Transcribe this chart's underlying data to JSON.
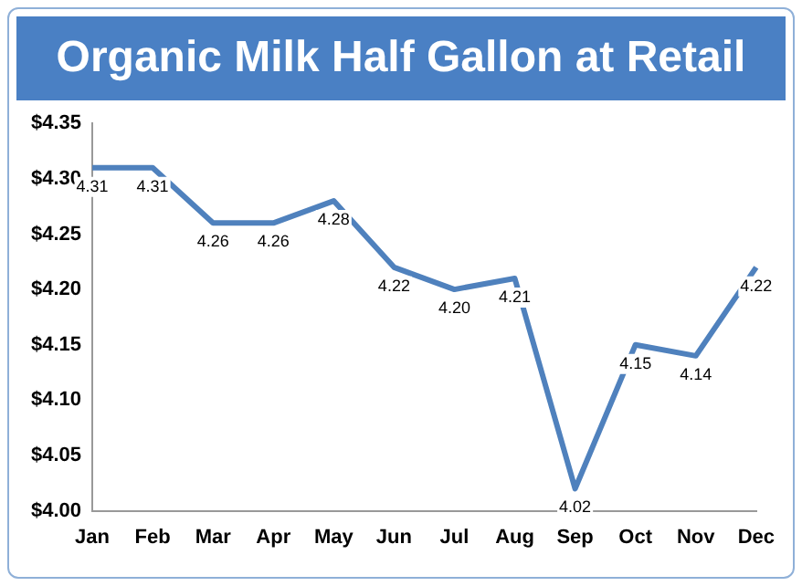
{
  "chart_data": {
    "type": "line",
    "title": "Organic Milk Half Gallon at Retail",
    "categories": [
      "Jan",
      "Feb",
      "Mar",
      "Apr",
      "May",
      "Jun",
      "Jul",
      "Aug",
      "Sep",
      "Oct",
      "Nov",
      "Dec"
    ],
    "series": [
      {
        "color": "#4f81bd",
        "values": [
          4.31,
          4.31,
          4.26,
          4.26,
          4.28,
          4.22,
          4.2,
          4.21,
          4.02,
          4.15,
          4.14,
          4.22
        ],
        "value_labels": [
          "4.31",
          "4.31",
          "4.26",
          "4.26",
          "4.28",
          "4.22",
          "4.20",
          "4.21",
          "4.02",
          "4.15",
          "4.14",
          "4.22"
        ]
      }
    ],
    "ylim": [
      4.0,
      4.35
    ],
    "yticks": [
      {
        "value": 4.0,
        "label": "$4.00"
      },
      {
        "value": 4.05,
        "label": "$4.05"
      },
      {
        "value": 4.1,
        "label": "$4.10"
      },
      {
        "value": 4.15,
        "label": "$4.15"
      },
      {
        "value": 4.2,
        "label": "$4.20"
      },
      {
        "value": 4.25,
        "label": "$4.25"
      },
      {
        "value": 4.3,
        "label": "$4.30"
      },
      {
        "value": 4.35,
        "label": "$4.35"
      }
    ],
    "grid": false,
    "legend": false,
    "marker": "none",
    "line_style": "solid"
  }
}
